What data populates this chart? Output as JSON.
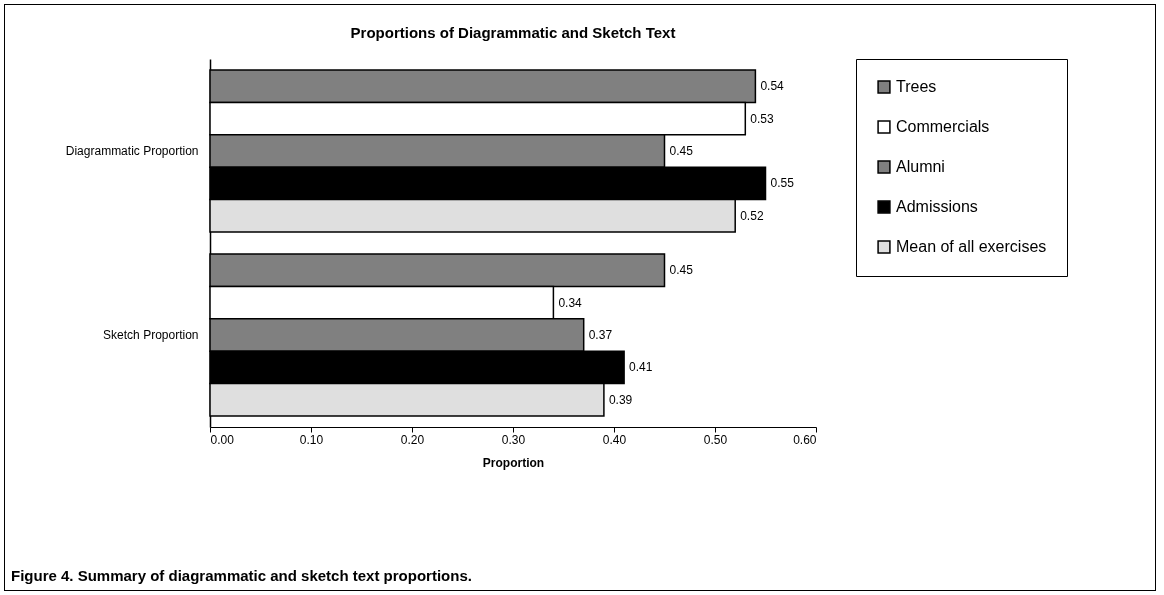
{
  "chart_data": {
    "type": "bar",
    "orientation": "horizontal",
    "title": "Proportions of Diagrammatic and Sketch Text",
    "xlabel": "Proportion",
    "categories": [
      "Diagrammatic Proportion",
      "Sketch Proportion"
    ],
    "series": [
      {
        "name": "Trees",
        "color": "#808080",
        "values": [
          0.54,
          0.45
        ]
      },
      {
        "name": "Commercials",
        "color": "#ffffff",
        "values": [
          0.53,
          0.34
        ]
      },
      {
        "name": "Alumni",
        "color": "#808080",
        "values": [
          0.45,
          0.37
        ]
      },
      {
        "name": "Admissions",
        "color": "#000000",
        "values": [
          0.55,
          0.41
        ]
      },
      {
        "name": "Mean of all exercises",
        "color": "#dfdfdf",
        "values": [
          0.52,
          0.39
        ]
      }
    ],
    "xlim": [
      0,
      0.6
    ],
    "xticks": [
      {
        "value": 0,
        "label": "0.00"
      },
      {
        "value": 0.1,
        "label": "0.10"
      },
      {
        "value": 0.2,
        "label": "0.20"
      },
      {
        "value": 0.3,
        "label": "0.30"
      },
      {
        "value": 0.4,
        "label": "0.40"
      },
      {
        "value": 0.5,
        "label": "0.50"
      },
      {
        "value": 0.6,
        "label": "0.60"
      }
    ],
    "data_labels": true,
    "legend": "right",
    "grid": false,
    "annotations": [
      "Figure 4.  Summary of diagrammatic and sketch text proportions."
    ]
  }
}
